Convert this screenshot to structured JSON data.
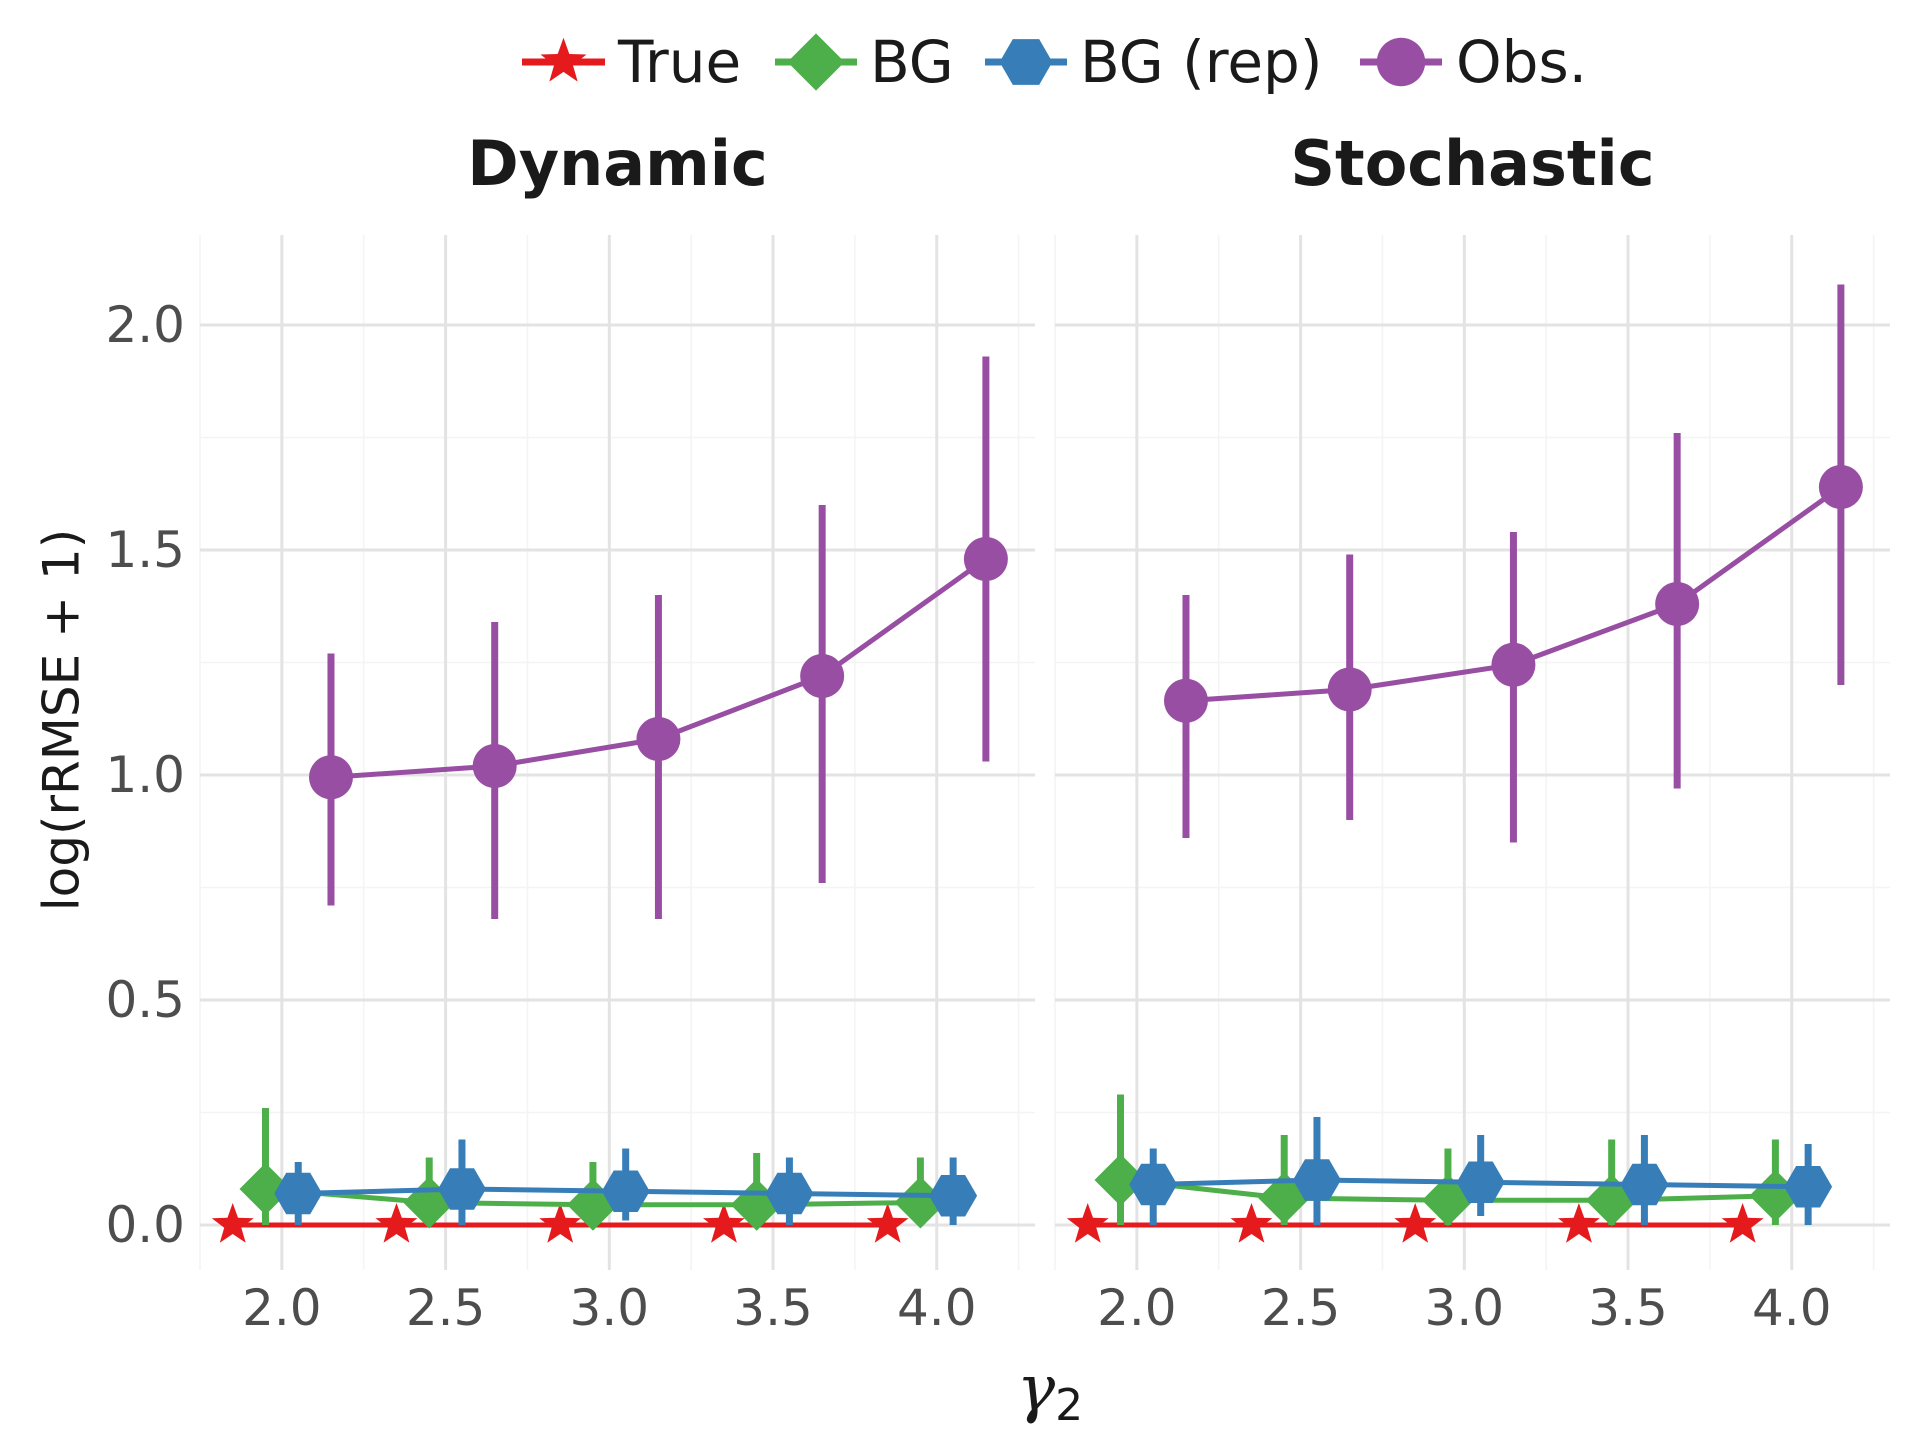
{
  "chart_data": {
    "type": "line",
    "ylabel": "log(rRMSE + 1)",
    "xlabel_main": "γ",
    "xlabel_sub": "2",
    "x": [
      2.0,
      2.5,
      3.0,
      3.5,
      4.0
    ],
    "x_ticks": [
      "2.0",
      "2.5",
      "3.0",
      "3.5",
      "4.0"
    ],
    "y_ticks": [
      "0.0",
      "0.5",
      "1.0",
      "1.5",
      "2.0"
    ],
    "xlim": [
      1.75,
      4.3
    ],
    "ylim": [
      -0.1,
      2.2
    ],
    "legend_position": "top",
    "grid": true,
    "series_meta": [
      {
        "name": "True",
        "color": "#e41a1c",
        "marker": "star",
        "dodge": -0.15
      },
      {
        "name": "BG",
        "color": "#4daf4a",
        "marker": "diamond",
        "dodge": -0.05
      },
      {
        "name": "BG (rep)",
        "color": "#377eb8",
        "marker": "hexagon",
        "dodge": 0.05
      },
      {
        "name": "Obs.",
        "color": "#984ea3",
        "marker": "circle",
        "dodge": 0.15
      }
    ],
    "panels": [
      {
        "title": "Dynamic",
        "series": [
          {
            "name": "True",
            "y": [
              0,
              0,
              0,
              0,
              0
            ],
            "lo": [
              0,
              0,
              0,
              0,
              0
            ],
            "hi": [
              0,
              0,
              0,
              0,
              0
            ]
          },
          {
            "name": "BG",
            "y": [
              0.08,
              0.05,
              0.045,
              0.045,
              0.05
            ],
            "lo": [
              0.0,
              0.0,
              0.0,
              0.0,
              0.0
            ],
            "hi": [
              0.26,
              0.15,
              0.14,
              0.16,
              0.15
            ]
          },
          {
            "name": "BG (rep)",
            "y": [
              0.07,
              0.08,
              0.075,
              0.07,
              0.065
            ],
            "lo": [
              0.0,
              0.0,
              0.01,
              0.0,
              0.0
            ],
            "hi": [
              0.14,
              0.19,
              0.17,
              0.15,
              0.15
            ]
          },
          {
            "name": "Obs.",
            "y": [
              0.995,
              1.02,
              1.08,
              1.22,
              1.48
            ],
            "lo": [
              0.71,
              0.68,
              0.68,
              0.76,
              1.03
            ],
            "hi": [
              1.27,
              1.34,
              1.4,
              1.6,
              1.93
            ]
          }
        ]
      },
      {
        "title": "Stochastic",
        "series": [
          {
            "name": "True",
            "y": [
              0,
              0,
              0,
              0,
              0
            ],
            "lo": [
              0,
              0,
              0,
              0,
              0
            ],
            "hi": [
              0,
              0,
              0,
              0,
              0
            ]
          },
          {
            "name": "BG",
            "y": [
              0.1,
              0.06,
              0.055,
              0.055,
              0.065
            ],
            "lo": [
              0.0,
              0.0,
              0.0,
              0.0,
              0.0
            ],
            "hi": [
              0.29,
              0.2,
              0.17,
              0.19,
              0.19
            ]
          },
          {
            "name": "BG (rep)",
            "y": [
              0.09,
              0.1,
              0.095,
              0.09,
              0.085
            ],
            "lo": [
              0.0,
              0.0,
              0.02,
              0.0,
              0.0
            ],
            "hi": [
              0.17,
              0.24,
              0.2,
              0.2,
              0.18
            ]
          },
          {
            "name": "Obs.",
            "y": [
              1.165,
              1.19,
              1.245,
              1.38,
              1.64
            ],
            "lo": [
              0.86,
              0.9,
              0.85,
              0.97,
              1.2
            ],
            "hi": [
              1.4,
              1.49,
              1.54,
              1.76,
              2.09
            ]
          }
        ]
      }
    ]
  }
}
